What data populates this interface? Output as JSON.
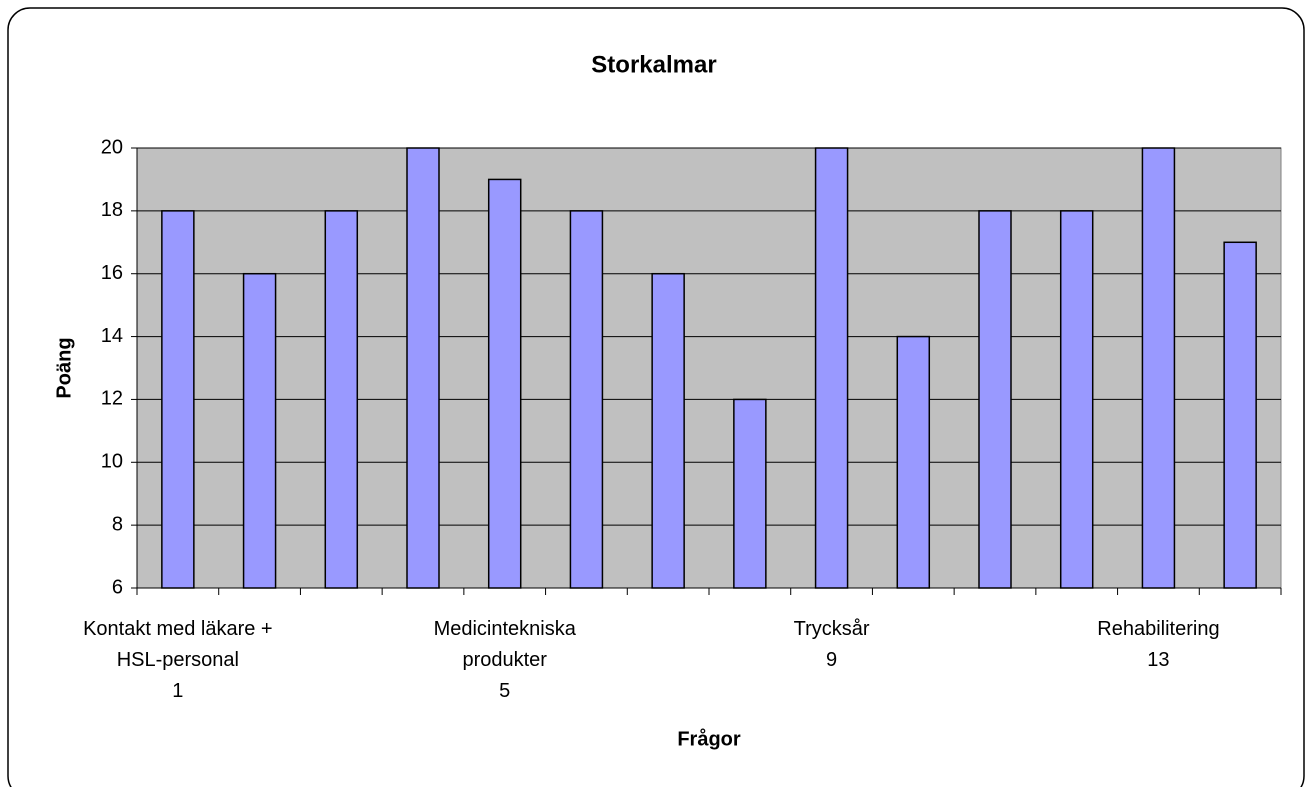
{
  "chart_data": {
    "type": "bar",
    "title": "Storkalmar",
    "x_label": "Frågor",
    "y_label": "Poäng",
    "categories": [
      [
        "Kontakt med läkare +",
        "HSL-personal",
        "1"
      ],
      null,
      null,
      null,
      [
        "Medicintekniska",
        "produkter",
        "5"
      ],
      null,
      null,
      null,
      [
        "Trycksår",
        "9"
      ],
      null,
      null,
      null,
      [
        "Rehabilitering",
        "13"
      ],
      null
    ],
    "values": [
      18,
      16,
      18,
      20,
      19,
      18,
      16,
      12,
      20,
      14,
      18,
      18,
      20,
      17
    ],
    "color": "#9999ff",
    "ylim": [
      6,
      20
    ],
    "yticks": [
      6,
      8,
      10,
      12,
      14,
      16,
      18,
      20
    ],
    "grid": true
  }
}
